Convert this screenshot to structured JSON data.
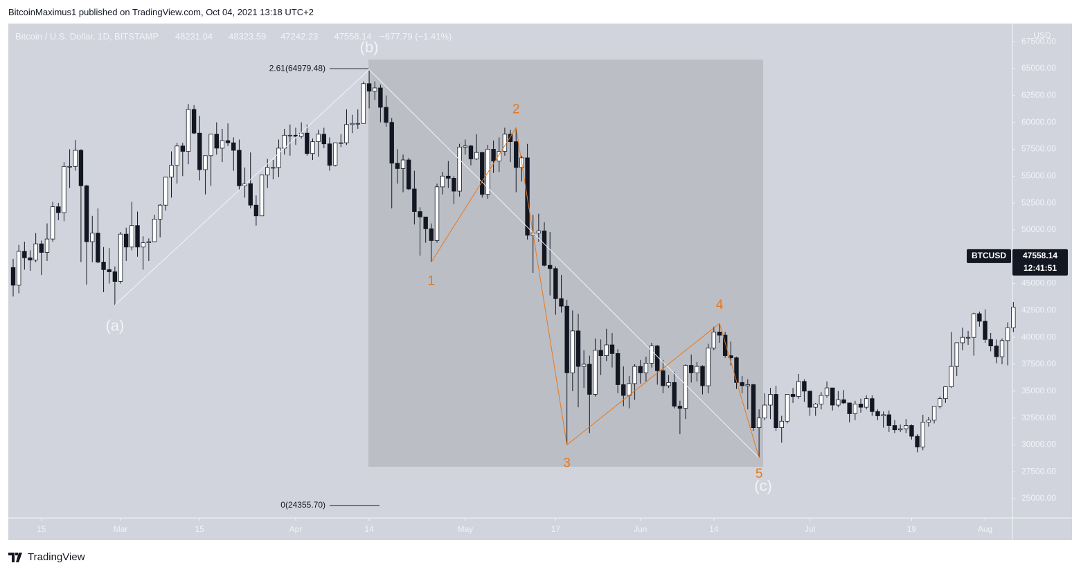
{
  "header": {
    "author_line": "BitcoinMaximus1 published on TradingView.com, Oct 04, 2021 13:18 UTC+2"
  },
  "footer": {
    "brand": "TradingView"
  },
  "chart_data": {
    "type": "candlestick",
    "title": "Bitcoin / U.S. Dollar, 1D, BITSTAMP",
    "currency": "USD",
    "ohlc_keys": [
      "O",
      "H",
      "L",
      "C"
    ],
    "ohlc": {
      "open": 48231.04,
      "high": 48323.59,
      "low": 47242.23,
      "close": 47558.14,
      "change": {
        "value": -677.79,
        "label": "−677.79 (−1.41%)"
      }
    },
    "last_price": {
      "symbol": "BTCUSD",
      "price": 47558.14,
      "countdown": "12:41:51"
    },
    "up_color": "#ffffff",
    "down_color": "#131722",
    "wave_color": "#e8781d",
    "abc_color": "#f0f3fa",
    "xlim": [
      -0.86,
      176.84
    ],
    "ylim": [
      23200,
      69190
    ],
    "xticks": [
      {
        "value": 5,
        "label": "15"
      },
      {
        "value": 19,
        "label": "Mar"
      },
      {
        "value": 33,
        "label": "15"
      },
      {
        "value": 50,
        "label": "Apr"
      },
      {
        "value": 63,
        "label": "14"
      },
      {
        "value": 80,
        "label": "May"
      },
      {
        "value": 96,
        "label": "17"
      },
      {
        "value": 111,
        "label": "Jun"
      },
      {
        "value": 124,
        "label": "14"
      },
      {
        "value": 141,
        "label": "Jul"
      },
      {
        "value": 159,
        "label": "19"
      },
      {
        "value": 172,
        "label": "Aug"
      }
    ],
    "yticks": [
      {
        "value": 25000,
        "label": "25000.00"
      },
      {
        "value": 27500,
        "label": "27500.00"
      },
      {
        "value": 30000,
        "label": "30000.00"
      },
      {
        "value": 32500,
        "label": "32500.00"
      },
      {
        "value": 35000,
        "label": "35000.00"
      },
      {
        "value": 37500,
        "label": "37500.00"
      },
      {
        "value": 40000,
        "label": "40000.00"
      },
      {
        "value": 42500,
        "label": "42500.00"
      },
      {
        "value": 45000,
        "label": "45000.00"
      },
      {
        "value": 47500,
        "label": "47500.00"
      },
      {
        "value": 50000,
        "label": "50000.00"
      },
      {
        "value": 52500,
        "label": "52500.00"
      },
      {
        "value": 55000,
        "label": "55000.00"
      },
      {
        "value": 57500,
        "label": "57500.00"
      },
      {
        "value": 60000,
        "label": "60000.00"
      },
      {
        "value": 62500,
        "label": "62500.00"
      },
      {
        "value": 65000,
        "label": "65000.00"
      },
      {
        "value": 67500,
        "label": "67500.00"
      }
    ],
    "fib_levels": [
      {
        "price": 64979.48,
        "label": "2.61(64979.48)"
      },
      {
        "price": 24355.7,
        "label": "0(24355.70)"
      }
    ],
    "abc_labels": [
      "(a)",
      "(b)",
      "(c)"
    ],
    "wave_labels": [
      "1",
      "2",
      "3",
      "4",
      "5"
    ],
    "candles": [
      [
        46500,
        47300,
        43800,
        44850
      ],
      [
        44850,
        48600,
        44100,
        48000
      ],
      [
        48000,
        48900,
        46300,
        47400
      ],
      [
        47400,
        48100,
        46200,
        47200
      ],
      [
        47200,
        49700,
        47000,
        48700
      ],
      [
        48700,
        49000,
        45800,
        47900
      ],
      [
        47900,
        50600,
        47100,
        49150
      ],
      [
        49150,
        52600,
        48900,
        52150
      ],
      [
        52150,
        52500,
        50900,
        51600
      ],
      [
        51600,
        56300,
        50800,
        55900
      ],
      [
        55900,
        57500,
        53900,
        55900
      ],
      [
        55900,
        58350,
        55500,
        57400
      ],
      [
        57400,
        57500,
        47000,
        54100
      ],
      [
        54100,
        54200,
        44900,
        48900
      ],
      [
        48900,
        51300,
        47000,
        49700
      ],
      [
        49700,
        52000,
        46900,
        47000
      ],
      [
        47000,
        48400,
        44200,
        46300
      ],
      [
        46300,
        48300,
        45000,
        46100
      ],
      [
        46100,
        46600,
        43000,
        45200
      ],
      [
        45200,
        49800,
        45000,
        49600
      ],
      [
        49600,
        50200,
        47100,
        48400
      ],
      [
        48400,
        52600,
        48100,
        50400
      ],
      [
        50400,
        51700,
        47500,
        48400
      ],
      [
        48400,
        49400,
        46300,
        48800
      ],
      [
        48800,
        49200,
        47100,
        48900
      ],
      [
        48900,
        51400,
        48900,
        51000
      ],
      [
        51000,
        52400,
        49300,
        52300
      ],
      [
        52300,
        54900,
        51800,
        54900
      ],
      [
        54900,
        57300,
        53000,
        56000
      ],
      [
        56000,
        58100,
        54300,
        57800
      ],
      [
        57800,
        58100,
        55000,
        57300
      ],
      [
        57300,
        61700,
        56100,
        61200
      ],
      [
        61200,
        61600,
        58900,
        59000
      ],
      [
        59000,
        60600,
        54600,
        55600
      ],
      [
        55600,
        56900,
        53300,
        56900
      ],
      [
        56900,
        58900,
        54100,
        58900
      ],
      [
        58900,
        60000,
        57000,
        57600
      ],
      [
        57600,
        59400,
        56300,
        58300
      ],
      [
        58300,
        59900,
        57800,
        58100
      ],
      [
        58100,
        58600,
        55500,
        57400
      ],
      [
        57400,
        58400,
        53700,
        54100
      ],
      [
        54100,
        55800,
        53000,
        54300
      ],
      [
        54300,
        57200,
        52000,
        52300
      ],
      [
        52300,
        53200,
        50400,
        51300
      ],
      [
        51300,
        55100,
        51300,
        55100
      ],
      [
        55100,
        56600,
        53900,
        55800
      ],
      [
        55800,
        56500,
        54700,
        55800
      ],
      [
        55800,
        58400,
        54900,
        57600
      ],
      [
        57600,
        59400,
        57000,
        58800
      ],
      [
        58800,
        59800,
        56900,
        58800
      ],
      [
        58800,
        59500,
        57900,
        58700
      ],
      [
        58700,
        60000,
        58500,
        59000
      ],
      [
        59000,
        59800,
        56900,
        57100
      ],
      [
        57100,
        58500,
        56500,
        58200
      ],
      [
        58200,
        59300,
        56800,
        58900
      ],
      [
        58900,
        59500,
        57600,
        58000
      ],
      [
        58000,
        58600,
        55500,
        56000
      ],
      [
        56000,
        58100,
        55900,
        58100
      ],
      [
        58100,
        58900,
        57700,
        58100
      ],
      [
        58100,
        61200,
        57900,
        59800
      ],
      [
        59800,
        60700,
        59000,
        59900
      ],
      [
        59900,
        61200,
        59400,
        59900
      ],
      [
        59900,
        63800,
        59900,
        63600
      ],
      [
        63600,
        64900,
        61300,
        62900
      ],
      [
        62900,
        63800,
        62100,
        63200
      ],
      [
        63200,
        63500,
        60000,
        61400
      ],
      [
        61400,
        62500,
        59600,
        60000
      ],
      [
        60000,
        60400,
        52000,
        56200
      ],
      [
        56200,
        57500,
        54300,
        55700
      ],
      [
        55700,
        57000,
        53500,
        56500
      ],
      [
        56500,
        56700,
        53700,
        53800
      ],
      [
        53800,
        55500,
        50500,
        51700
      ],
      [
        51700,
        52100,
        47600,
        51200
      ],
      [
        51200,
        51200,
        48800,
        50100
      ],
      [
        50100,
        50600,
        47000,
        49000
      ],
      [
        49000,
        54300,
        48800,
        54000
      ],
      [
        54000,
        55400,
        53300,
        55000
      ],
      [
        55000,
        56400,
        53900,
        54800
      ],
      [
        54800,
        55000,
        52400,
        53600
      ],
      [
        53600,
        58000,
        53100,
        57700
      ],
      [
        57700,
        58400,
        57000,
        57800
      ],
      [
        57800,
        57900,
        56000,
        56600
      ],
      [
        56600,
        58900,
        56500,
        57200
      ],
      [
        57200,
        57200,
        53000,
        53300
      ],
      [
        53300,
        57900,
        52900,
        57500
      ],
      [
        57500,
        58300,
        55300,
        56400
      ],
      [
        56400,
        58600,
        55400,
        57300
      ],
      [
        57300,
        59500,
        56900,
        58900
      ],
      [
        58900,
        59300,
        56300,
        58200
      ],
      [
        58200,
        59500,
        53500,
        55800
      ],
      [
        55800,
        56900,
        54500,
        56700
      ],
      [
        56700,
        58000,
        49100,
        49500
      ],
      [
        49500,
        51400,
        46000,
        49700
      ],
      [
        49700,
        51500,
        48900,
        49900
      ],
      [
        49900,
        50700,
        46600,
        46700
      ],
      [
        46700,
        49800,
        43900,
        46400
      ],
      [
        46400,
        46600,
        42100,
        43600
      ],
      [
        43600,
        45800,
        42300,
        42900
      ],
      [
        42900,
        43500,
        30000,
        36700
      ],
      [
        36700,
        42500,
        35000,
        40600
      ],
      [
        40600,
        42200,
        33500,
        37300
      ],
      [
        37300,
        38800,
        35300,
        37500
      ],
      [
        37500,
        38300,
        31100,
        34700
      ],
      [
        34700,
        39900,
        34500,
        38800
      ],
      [
        38800,
        39800,
        36500,
        38300
      ],
      [
        38300,
        40800,
        37800,
        39300
      ],
      [
        39300,
        40400,
        37200,
        38500
      ],
      [
        38500,
        38900,
        34800,
        35600
      ],
      [
        35600,
        37300,
        33600,
        34600
      ],
      [
        34600,
        36400,
        33400,
        35700
      ],
      [
        35700,
        37500,
        34200,
        37300
      ],
      [
        37300,
        37900,
        35700,
        36700
      ],
      [
        36700,
        38200,
        35900,
        37600
      ],
      [
        37600,
        39500,
        37200,
        39200
      ],
      [
        39200,
        39300,
        35600,
        36900
      ],
      [
        36900,
        37900,
        34800,
        35500
      ],
      [
        35500,
        36500,
        35300,
        35800
      ],
      [
        35800,
        36800,
        33400,
        33600
      ],
      [
        33600,
        34100,
        31000,
        33400
      ],
      [
        33400,
        37500,
        32400,
        37400
      ],
      [
        37400,
        38400,
        35800,
        36700
      ],
      [
        36700,
        37700,
        35900,
        37300
      ],
      [
        37300,
        37400,
        34700,
        35500
      ],
      [
        35500,
        39400,
        34800,
        39000
      ],
      [
        39000,
        41000,
        38800,
        40500
      ],
      [
        40500,
        41300,
        39500,
        40200
      ],
      [
        40200,
        40500,
        38100,
        38300
      ],
      [
        38300,
        39600,
        37400,
        38100
      ],
      [
        38100,
        38200,
        35200,
        35800
      ],
      [
        35800,
        36400,
        34800,
        35500
      ],
      [
        35500,
        36100,
        33300,
        35600
      ],
      [
        35600,
        35700,
        31300,
        31600
      ],
      [
        31600,
        33300,
        28800,
        32500
      ],
      [
        32500,
        34800,
        32300,
        33700
      ],
      [
        33700,
        35300,
        32400,
        34700
      ],
      [
        34700,
        35500,
        31300,
        31600
      ],
      [
        31600,
        32700,
        30200,
        32200
      ],
      [
        32200,
        34700,
        32000,
        34700
      ],
      [
        34700,
        35300,
        33900,
        34500
      ],
      [
        34500,
        36600,
        34300,
        35900
      ],
      [
        35900,
        36100,
        34000,
        35000
      ],
      [
        35000,
        35000,
        32700,
        33500
      ],
      [
        33500,
        33900,
        32700,
        33800
      ],
      [
        33800,
        34900,
        33300,
        34600
      ],
      [
        34600,
        35900,
        34400,
        35300
      ],
      [
        35300,
        35300,
        33200,
        33700
      ],
      [
        33700,
        35000,
        33500,
        34200
      ],
      [
        34200,
        35100,
        33800,
        33900
      ],
      [
        33900,
        33900,
        32100,
        32900
      ],
      [
        32900,
        34100,
        32300,
        33800
      ],
      [
        33800,
        34300,
        33000,
        33500
      ],
      [
        33500,
        34600,
        33300,
        34300
      ],
      [
        34300,
        34600,
        32700,
        33100
      ],
      [
        33100,
        33300,
        32300,
        32700
      ],
      [
        32700,
        33100,
        31600,
        32800
      ],
      [
        32800,
        33200,
        31200,
        31800
      ],
      [
        31800,
        32300,
        31100,
        31400
      ],
      [
        31400,
        31900,
        31200,
        31500
      ],
      [
        31500,
        32400,
        31100,
        31800
      ],
      [
        31800,
        31900,
        30500,
        30800
      ],
      [
        30800,
        31000,
        29300,
        29800
      ],
      [
        29800,
        32800,
        29500,
        32100
      ],
      [
        32100,
        32600,
        31700,
        32300
      ],
      [
        32300,
        33600,
        32000,
        33600
      ],
      [
        33600,
        34500,
        33400,
        34300
      ],
      [
        34300,
        35400,
        33900,
        35400
      ],
      [
        35400,
        40500,
        35300,
        37300
      ],
      [
        37300,
        39500,
        36400,
        39500
      ],
      [
        39500,
        40900,
        38800,
        40000
      ],
      [
        40000,
        40600,
        39300,
        40000
      ],
      [
        40000,
        42300,
        38300,
        42200
      ],
      [
        42200,
        42400,
        41000,
        41500
      ],
      [
        41500,
        42600,
        39500,
        39800
      ],
      [
        39800,
        40400,
        38700,
        39200
      ],
      [
        39200,
        39800,
        37600,
        38200
      ],
      [
        38200,
        39900,
        37500,
        39700
      ],
      [
        39700,
        41400,
        37400,
        40900
      ],
      [
        40900,
        43300,
        40500,
        42800
      ]
    ]
  }
}
